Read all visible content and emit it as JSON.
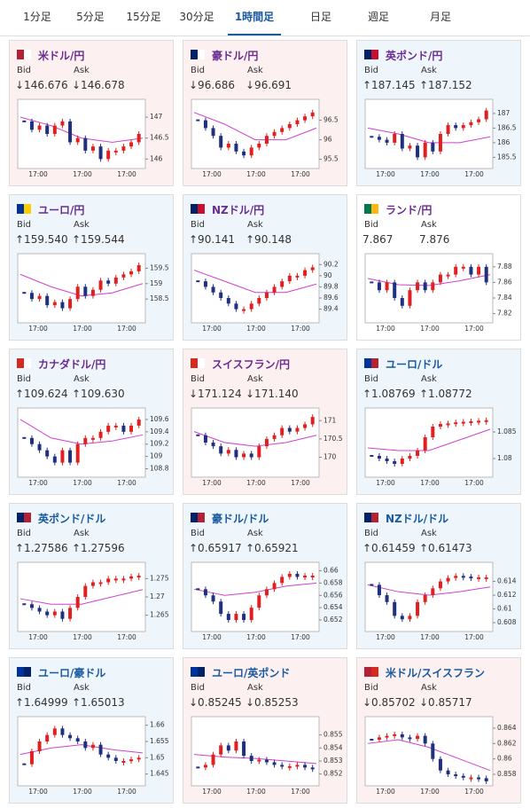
{
  "tabs": [
    "1分足",
    "5分足",
    "15分足",
    "30分足",
    "1時間足",
    "日足",
    "週足",
    "月足"
  ],
  "active_tab": 4,
  "panels": [
    {
      "title": "米ドル/円",
      "bid_label": "Bid",
      "ask_label": "Ask",
      "bid": "↓146.676",
      "ask": "↓146.678",
      "ylim": [
        145.9,
        147.3
      ],
      "yticks": [
        146,
        146.5,
        147
      ],
      "xticks": [
        "17:00",
        "17:00",
        "17:00"
      ],
      "close": [
        146.9,
        146.7,
        146.8,
        146.6,
        146.8,
        146.9,
        146.4,
        146.5,
        146.2,
        146.3,
        146.0,
        146.2,
        146.2,
        146.3,
        146.4,
        146.6
      ],
      "ma": [
        147.0,
        146.8,
        146.5,
        146.4,
        146.5
      ]
    },
    {
      "title": "豪ドル/円",
      "bid_label": "Bid",
      "ask_label": "Ask",
      "bid": "↓96.686",
      "ask": "↓96.691",
      "ylim": [
        95.4,
        96.9
      ],
      "yticks": [
        95.5,
        96,
        96.5
      ],
      "xticks": [
        "17:00",
        "17:00",
        "17:00"
      ],
      "close": [
        96.5,
        96.3,
        96.1,
        95.8,
        95.9,
        95.7,
        95.6,
        95.8,
        95.9,
        96.1,
        96.2,
        96.3,
        96.4,
        96.5,
        96.6,
        96.7
      ],
      "ma": [
        96.7,
        96.4,
        96.0,
        96.0,
        96.3
      ]
    },
    {
      "title": "英ポンド/円",
      "bid_label": "Bid",
      "ask_label": "Ask",
      "bid": "↑187.145",
      "ask": "↑187.152",
      "ylim": [
        185.3,
        187.3
      ],
      "yticks": [
        185.5,
        186,
        186.5,
        187
      ],
      "xticks": [
        "17:00",
        "17:00",
        "17:00"
      ],
      "close": [
        186.2,
        186.1,
        186.0,
        186.3,
        185.8,
        185.9,
        185.5,
        186.0,
        185.7,
        186.3,
        186.6,
        186.5,
        186.6,
        186.7,
        186.8,
        187.1
      ],
      "ma": [
        186.5,
        186.3,
        186.0,
        186.0,
        186.2
      ]
    },
    {
      "title": "ユーロ/円",
      "bid_label": "Bid",
      "ask_label": "Ask",
      "bid": "↑159.540",
      "ask": "↑159.544",
      "ylim": [
        157.9,
        159.8
      ],
      "yticks": [
        158.5,
        159,
        159.5
      ],
      "xticks": [
        "17:00",
        "17:00",
        "17:00"
      ],
      "close": [
        158.7,
        158.5,
        158.6,
        158.3,
        158.4,
        158.2,
        158.5,
        158.9,
        158.6,
        158.8,
        159.1,
        159.0,
        159.2,
        159.3,
        159.4,
        159.6
      ],
      "ma": [
        159.3,
        158.9,
        158.6,
        158.7,
        159.0
      ]
    },
    {
      "title": "NZドル/円",
      "bid_label": "Bid",
      "ask_label": "Ask",
      "bid": "↑90.141",
      "ask": "↑90.148",
      "ylim": [
        89.25,
        90.3
      ],
      "yticks": [
        89.4,
        89.6,
        89.8,
        90,
        90.2
      ],
      "xticks": [
        "17:00",
        "17:00",
        "17:00"
      ],
      "close": [
        89.9,
        89.8,
        89.7,
        89.6,
        89.5,
        89.4,
        89.4,
        89.5,
        89.6,
        89.7,
        89.8,
        89.9,
        90.0,
        90.0,
        90.1,
        90.15
      ],
      "ma": [
        90.1,
        89.9,
        89.7,
        89.7,
        89.85
      ]
    },
    {
      "title": "ランド/円",
      "bid_label": "Bid",
      "ask_label": "Ask",
      "bid": "7.867",
      "ask": "7.876",
      "ylim": [
        7.815,
        7.89
      ],
      "yticks": [
        7.82,
        7.84,
        7.86,
        7.88
      ],
      "xticks": [
        "17:00",
        "17:00",
        "17:00"
      ],
      "close": [
        7.86,
        7.85,
        7.86,
        7.84,
        7.83,
        7.85,
        7.86,
        7.85,
        7.86,
        7.87,
        7.87,
        7.88,
        7.88,
        7.87,
        7.88,
        7.86
      ],
      "ma": [
        7.865,
        7.857,
        7.856,
        7.862,
        7.87
      ]
    },
    {
      "title": "カナダドル/円",
      "bid_label": "Bid",
      "ask_label": "Ask",
      "bid": "↑109.624",
      "ask": "↑109.630",
      "ylim": [
        108.75,
        109.7
      ],
      "yticks": [
        108.8,
        109,
        109.2,
        109.4,
        109.6
      ],
      "xticks": [
        "17:00",
        "17:00",
        "17:00"
      ],
      "close": [
        109.3,
        109.2,
        109.1,
        109.0,
        108.9,
        109.1,
        108.9,
        109.2,
        109.3,
        109.3,
        109.4,
        109.5,
        109.5,
        109.4,
        109.5,
        109.6
      ],
      "ma": [
        109.6,
        109.3,
        109.2,
        109.25,
        109.35
      ]
    },
    {
      "title": "スイスフラン/円",
      "bid_label": "Bid",
      "ask_label": "Ask",
      "bid": "↓171.124",
      "ask": "↓171.140",
      "ylim": [
        169.6,
        171.2
      ],
      "yticks": [
        170,
        170.5,
        171
      ],
      "xticks": [
        "17:00",
        "17:00",
        "17:00"
      ],
      "close": [
        170.6,
        170.4,
        170.3,
        170.1,
        170.2,
        170.0,
        170.1,
        170.0,
        170.3,
        170.5,
        170.6,
        170.8,
        170.7,
        170.8,
        170.9,
        171.1
      ],
      "ma": [
        170.7,
        170.4,
        170.3,
        170.4,
        170.6
      ]
    },
    {
      "title": "ユーロ/ドル",
      "bid_label": "Bid",
      "ask_label": "Ask",
      "bid": "↑1.08769",
      "ask": "↑1.08772",
      "ylim": [
        1.0775,
        1.0885
      ],
      "yticks": [
        1.08,
        1.085
      ],
      "xticks": [
        "17:00",
        "17:00",
        "17:00"
      ],
      "close": [
        1.0805,
        1.08,
        1.0795,
        1.079,
        1.08,
        1.0805,
        1.0815,
        1.084,
        1.086,
        1.0865,
        1.0866,
        1.0868,
        1.0869,
        1.087,
        1.0871,
        1.0872
      ],
      "ma": [
        1.082,
        1.0815,
        1.0815,
        1.0835,
        1.0855
      ]
    },
    {
      "title": "英ポンド/ドル",
      "bid_label": "Bid",
      "ask_label": "Ask",
      "bid": "↑1.27586",
      "ask": "↑1.27596",
      "ylim": [
        1.262,
        1.278
      ],
      "yticks": [
        1.265,
        1.27,
        1.275
      ],
      "xticks": [
        "17:00",
        "17:00",
        "17:00"
      ],
      "close": [
        1.268,
        1.267,
        1.266,
        1.265,
        1.266,
        1.264,
        1.267,
        1.27,
        1.273,
        1.274,
        1.274,
        1.275,
        1.275,
        1.275,
        1.2756,
        1.2758
      ],
      "ma": [
        1.2695,
        1.268,
        1.268,
        1.27,
        1.272
      ]
    },
    {
      "title": "豪ドル/ドル",
      "bid_label": "Bid",
      "ask_label": "Ask",
      "bid": "↑0.65917",
      "ask": "↑0.65921",
      "ylim": [
        0.651,
        0.6605
      ],
      "yticks": [
        0.652,
        0.654,
        0.656,
        0.658,
        0.66
      ],
      "xticks": [
        "17:00",
        "17:00",
        "17:00"
      ],
      "close": [
        0.657,
        0.656,
        0.655,
        0.653,
        0.652,
        0.653,
        0.652,
        0.654,
        0.656,
        0.657,
        0.658,
        0.659,
        0.6595,
        0.659,
        0.6592,
        0.6592
      ],
      "ma": [
        0.657,
        0.656,
        0.6565,
        0.6575,
        0.658
      ]
    },
    {
      "title": "NZドル/ドル",
      "bid_label": "Bid",
      "ask_label": "Ask",
      "bid": "↑0.61459",
      "ask": "↑0.61473",
      "ylim": [
        0.6075,
        0.616
      ],
      "yticks": [
        0.608,
        0.61,
        0.612,
        0.614
      ],
      "xticks": [
        "17:00",
        "17:00",
        "17:00"
      ],
      "close": [
        0.6135,
        0.612,
        0.611,
        0.609,
        0.6085,
        0.609,
        0.611,
        0.612,
        0.613,
        0.614,
        0.6145,
        0.6148,
        0.6147,
        0.6146,
        0.6146,
        0.6146
      ],
      "ma": [
        0.6135,
        0.6125,
        0.612,
        0.6125,
        0.6132
      ]
    },
    {
      "title": "ユーロ/豪ドル",
      "bid_label": "Bid",
      "ask_label": "Ask",
      "bid": "↑1.64999",
      "ask": "↑1.65013",
      "ylim": [
        1.643,
        1.661
      ],
      "yticks": [
        1.645,
        1.65,
        1.655,
        1.66
      ],
      "xticks": [
        "17:00",
        "17:00",
        "17:00"
      ],
      "close": [
        1.648,
        1.652,
        1.655,
        1.657,
        1.659,
        1.657,
        1.656,
        1.655,
        1.653,
        1.654,
        1.651,
        1.65,
        1.649,
        1.649,
        1.6495,
        1.65
      ],
      "ma": [
        1.651,
        1.653,
        1.654,
        1.6525,
        1.6515
      ]
    },
    {
      "title": "ユーロ/英ポンド",
      "bid_label": "Bid",
      "ask_label": "Ask",
      "bid": "↓0.85245",
      "ask": "↓0.85253",
      "ylim": [
        0.8515,
        0.856
      ],
      "yticks": [
        0.852,
        0.853,
        0.854,
        0.855
      ],
      "xticks": [
        "17:00",
        "17:00",
        "17:00"
      ],
      "close": [
        0.8525,
        0.8527,
        0.8535,
        0.8542,
        0.8538,
        0.8545,
        0.8534,
        0.853,
        0.8531,
        0.8529,
        0.8527,
        0.8526,
        0.8526,
        0.8527,
        0.8525,
        0.8524
      ],
      "ma": [
        0.8535,
        0.8533,
        0.8532,
        0.853,
        0.8528
      ]
    },
    {
      "title": "米ドル/スイスフラン",
      "bid_label": "Bid",
      "ask_label": "Ask",
      "bid": "↓0.85702",
      "ask": "↓0.85717",
      "ylim": [
        0.8572,
        0.8648
      ],
      "yticks": [
        0.858,
        0.86,
        0.862,
        0.864
      ],
      "xticks": [
        "17:00",
        "17:00",
        "17:00"
      ],
      "close": [
        0.8625,
        0.8628,
        0.863,
        0.8632,
        0.8628,
        0.8626,
        0.863,
        0.862,
        0.86,
        0.8585,
        0.858,
        0.8578,
        0.8576,
        0.8576,
        0.8575,
        0.8571
      ],
      "ma": [
        0.862,
        0.8625,
        0.8615,
        0.86,
        0.8585
      ]
    }
  ]
}
